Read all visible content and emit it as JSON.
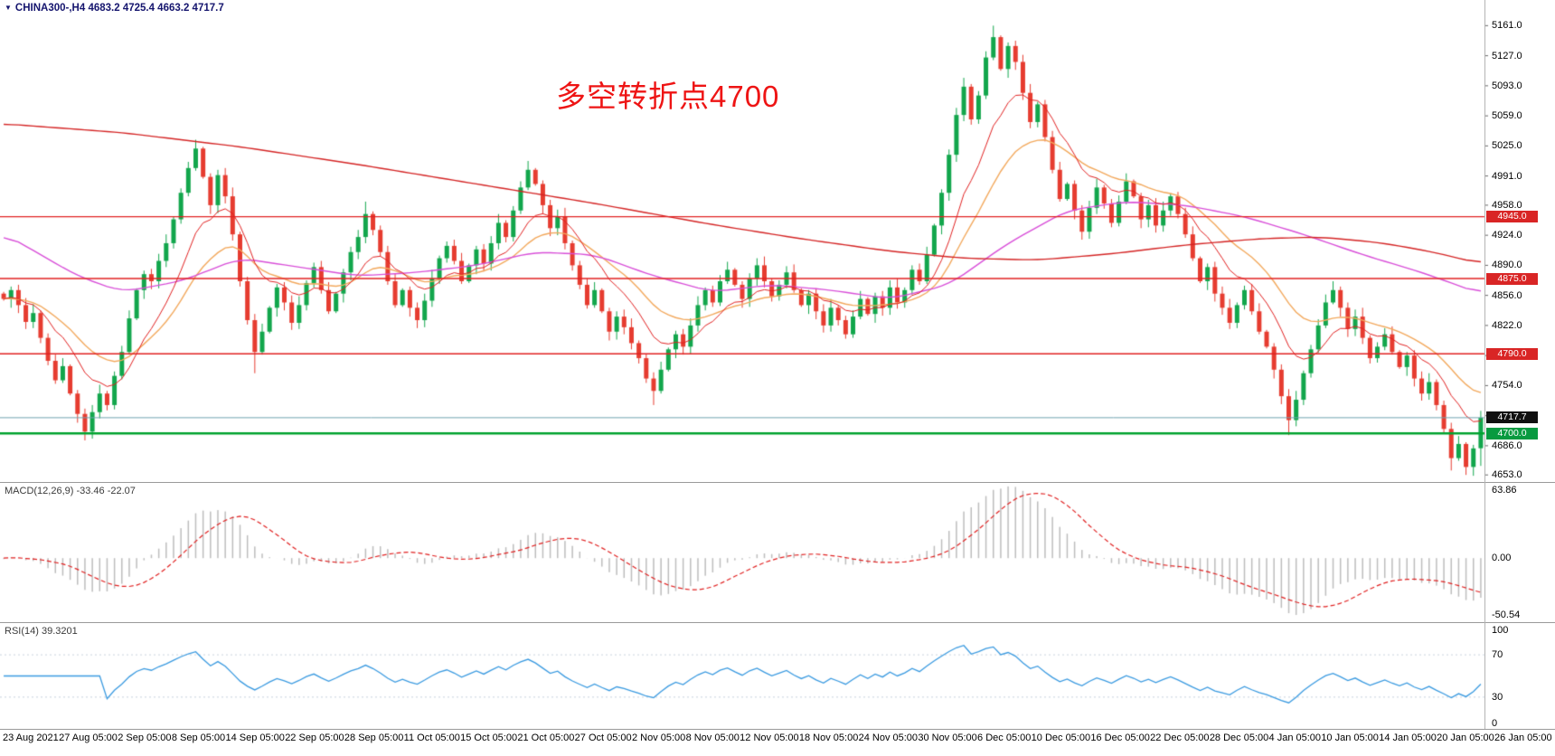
{
  "header": {
    "symbol": "CHINA300-,H4",
    "ohlc": "4683.2 4725.4 4663.2 4717.7",
    "full": "CHINA300-,H4 4683.2 4725.4 4663.2 4717.7"
  },
  "icons": {
    "symbol_marker": "▼"
  },
  "annotation": {
    "text": "多空转折点4700"
  },
  "panels": {
    "macd_label": "MACD(12,26,9) -33.46 -22.07",
    "rsi_label": "RSI(14) 39.3201"
  },
  "price_axis": {
    "badges": [
      {
        "text": "4945.0",
        "value": 4945.0,
        "bg": "#d92525"
      },
      {
        "text": "4875.0",
        "value": 4875.0,
        "bg": "#d92525"
      },
      {
        "text": "4790.0",
        "value": 4790.0,
        "bg": "#d92525"
      },
      {
        "text": "4717.7",
        "value": 4717.7,
        "bg": "#101010"
      },
      {
        "text": "4700.0",
        "value": 4700.0,
        "bg": "#089a40"
      }
    ]
  },
  "colors": {
    "up": "#12a64c",
    "down": "#e63c30",
    "ma_fast_red": "#e02020",
    "ma_slow_red": "#d42424",
    "ma_orange": "#f2a85c",
    "ma_magenta": "#d84fd8",
    "level_red": "#e02020",
    "level_green": "#00a32e",
    "price_line": "#6fa3b0",
    "macd_hist": "#bdbdbd",
    "macd_signal": "#e02020",
    "rsi_line": "#3a9ae0",
    "separator": "#9a9a9a",
    "axis_text": "#000000",
    "header_text": "#15156e",
    "annotation": "#ee1414"
  },
  "chart_data": {
    "type": "candlestick",
    "symbol": "CHINA300-",
    "timeframe": "H4",
    "title": "CHINA300-,H4 4683.2 4725.4 4663.2 4717.7",
    "y_range": [
      4645,
      5190
    ],
    "y_ticks": [
      "5161.0",
      "5127.0",
      "5093.0",
      "5059.0",
      "5025.0",
      "4991.0",
      "4958.0",
      "4924.0",
      "4890.0",
      "4856.0",
      "4822.0",
      "4788.0",
      "4754.0",
      "4720.0",
      "4686.0",
      "4653.0"
    ],
    "x_labels": [
      "23 Aug 2021",
      "27 Aug 05:00",
      "2 Sep 05:00",
      "8 Sep 05:00",
      "14 Sep 05:00",
      "22 Sep 05:00",
      "28 Sep 05:00",
      "11 Oct 05:00",
      "15 Oct 05:00",
      "21 Oct 05:00",
      "27 Oct 05:00",
      "2 Nov 05:00",
      "8 Nov 05:00",
      "12 Nov 05:00",
      "18 Nov 05:00",
      "24 Nov 05:00",
      "30 Nov 05:00",
      "6 Dec 05:00",
      "10 Dec 05:00",
      "16 Dec 05:00",
      "22 Dec 05:00",
      "28 Dec 05:00",
      "4 Jan 05:00",
      "10 Jan 05:00",
      "14 Jan 05:00",
      "20 Jan 05:00",
      "26 Jan 05:00"
    ],
    "closes": [
      4852,
      4862,
      4845,
      4826,
      4836,
      4808,
      4782,
      4760,
      4776,
      4745,
      4722,
      4702,
      4724,
      4745,
      4732,
      4765,
      4792,
      4830,
      4862,
      4880,
      4872,
      4895,
      4915,
      4942,
      4972,
      5000,
      5022,
      4990,
      4958,
      4992,
      4968,
      4925,
      4872,
      4828,
      4792,
      4815,
      4842,
      4865,
      4848,
      4825,
      4845,
      4870,
      4888,
      4862,
      4838,
      4858,
      4882,
      4905,
      4922,
      4948,
      4930,
      4905,
      4872,
      4845,
      4862,
      4842,
      4828,
      4850,
      4875,
      4898,
      4912,
      4895,
      4872,
      4890,
      4908,
      4892,
      4915,
      4938,
      4922,
      4952,
      4978,
      4998,
      4982,
      4958,
      4932,
      4945,
      4915,
      4890,
      4868,
      4845,
      4862,
      4838,
      4815,
      4832,
      4820,
      4802,
      4785,
      4762,
      4748,
      4772,
      4795,
      4812,
      4798,
      4822,
      4845,
      4862,
      4848,
      4872,
      4885,
      4868,
      4852,
      4875,
      4890,
      4872,
      4855,
      4868,
      4882,
      4862,
      4845,
      4858,
      4838,
      4822,
      4842,
      4828,
      4812,
      4832,
      4852,
      4835,
      4855,
      4842,
      4865,
      4848,
      4862,
      4885,
      4872,
      4902,
      4935,
      4972,
      5015,
      5060,
      5092,
      5055,
      5082,
      5125,
      5148,
      5112,
      5138,
      5120,
      5085,
      5052,
      5072,
      5035,
      4998,
      4965,
      4982,
      4952,
      4928,
      4955,
      4978,
      4960,
      4938,
      4962,
      4985,
      4968,
      4942,
      4958,
      4935,
      4952,
      4968,
      4948,
      4925,
      4898,
      4872,
      4888,
      4858,
      4842,
      4825,
      4845,
      4862,
      4838,
      4815,
      4798,
      4772,
      4742,
      4715,
      4738,
      4768,
      4795,
      4822,
      4848,
      4862,
      4842,
      4818,
      4832,
      4808,
      4785,
      4798,
      4812,
      4792,
      4775,
      4788,
      4762,
      4745,
      4758,
      4732,
      4705,
      4672,
      4688,
      4662,
      4683,
      4717.7
    ],
    "last_bar": {
      "open": 4683.2,
      "high": 4725.4,
      "low": 4663.2,
      "close": 4717.7
    },
    "wick_overrides": {
      "11": {
        "low": 4692
      },
      "26": {
        "high": 5032
      },
      "34": {
        "low": 4768
      },
      "49": {
        "high": 4962
      },
      "71": {
        "high": 5008
      },
      "88": {
        "low": 4732
      },
      "134": {
        "high": 5161
      },
      "174": {
        "low": 4698
      },
      "180": {
        "high": 4872
      },
      "196": {
        "low": 4658
      },
      "198": {
        "low": 4653
      }
    },
    "horizontal_levels": [
      {
        "price": 4945.0,
        "color": "#e02020",
        "width": 1.4
      },
      {
        "price": 4875.0,
        "color": "#e02020",
        "width": 1.4
      },
      {
        "price": 4790.0,
        "color": "#e02020",
        "width": 1.4
      },
      {
        "price": 4700.0,
        "color": "#00a32e",
        "width": 2.6
      }
    ],
    "current_price": 4717.7,
    "moving_averages": {
      "fast_red_period": 10,
      "orange_period": 20,
      "magenta_keypoints": [
        [
          0,
          4926
        ],
        [
          10,
          4878
        ],
        [
          16,
          4860
        ],
        [
          24,
          4872
        ],
        [
          32,
          4898
        ],
        [
          40,
          4888
        ],
        [
          48,
          4878
        ],
        [
          56,
          4882
        ],
        [
          64,
          4890
        ],
        [
          72,
          4905
        ],
        [
          80,
          4902
        ],
        [
          88,
          4878
        ],
        [
          96,
          4860
        ],
        [
          104,
          4868
        ],
        [
          112,
          4862
        ],
        [
          120,
          4852
        ],
        [
          128,
          4868
        ],
        [
          136,
          4915
        ],
        [
          144,
          4952
        ],
        [
          152,
          4962
        ],
        [
          160,
          4958
        ],
        [
          168,
          4945
        ],
        [
          176,
          4925
        ],
        [
          184,
          4902
        ],
        [
          192,
          4882
        ],
        [
          200,
          4858
        ]
      ],
      "slow_red_keypoints": [
        [
          0,
          5050
        ],
        [
          16,
          5040
        ],
        [
          32,
          5024
        ],
        [
          48,
          5004
        ],
        [
          64,
          4982
        ],
        [
          80,
          4960
        ],
        [
          96,
          4936
        ],
        [
          108,
          4920
        ],
        [
          120,
          4906
        ],
        [
          130,
          4898
        ],
        [
          140,
          4896
        ],
        [
          150,
          4903
        ],
        [
          160,
          4913
        ],
        [
          170,
          4920
        ],
        [
          178,
          4922
        ],
        [
          186,
          4916
        ],
        [
          193,
          4906
        ],
        [
          200,
          4892
        ]
      ]
    },
    "macd": {
      "params": [
        12,
        26,
        9
      ],
      "current_main": -33.46,
      "current_signal": -22.07,
      "display_max": 63.86,
      "display_min": -50.54,
      "axis_labels": [
        "63.86",
        "0.00",
        "-50.54"
      ],
      "axis_values": [
        63.86,
        0,
        -50.54
      ]
    },
    "rsi": {
      "period": 14,
      "current": 39.3201,
      "levels": [
        70,
        30
      ],
      "axis_labels": [
        "100",
        "70",
        "30",
        "0"
      ],
      "axis_values": [
        100,
        70,
        30,
        0
      ]
    }
  }
}
